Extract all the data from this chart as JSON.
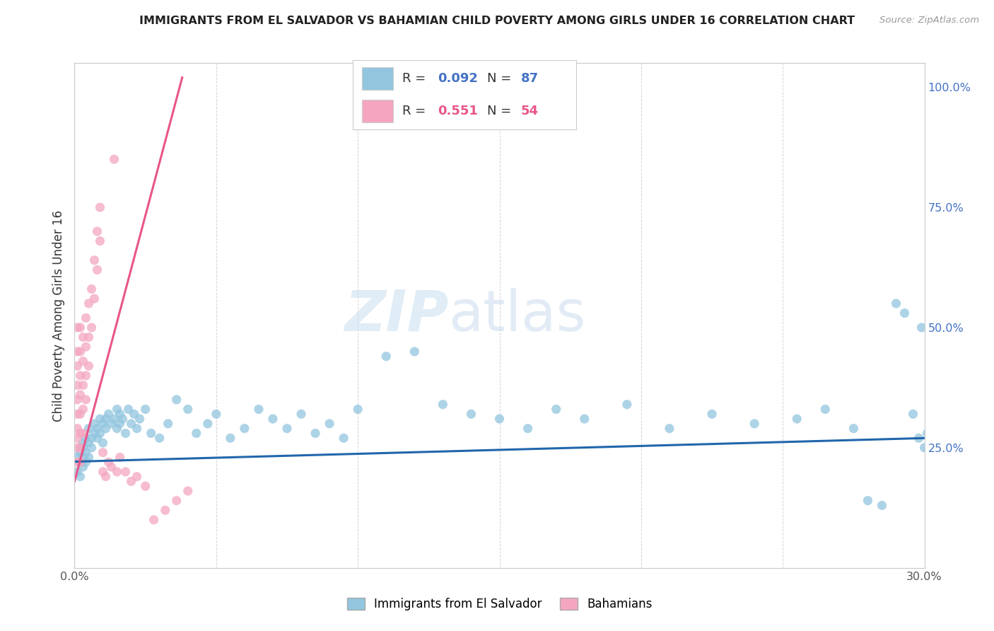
{
  "title": "IMMIGRANTS FROM EL SALVADOR VS BAHAMIAN CHILD POVERTY AMONG GIRLS UNDER 16 CORRELATION CHART",
  "source": "Source: ZipAtlas.com",
  "ylabel": "Child Poverty Among Girls Under 16",
  "xlim": [
    0.0,
    0.3
  ],
  "ylim": [
    0.0,
    1.05
  ],
  "blue_color": "#92c5de",
  "pink_color": "#f4a6c0",
  "blue_line_color": "#2166ac",
  "pink_line_color": "#e8558a",
  "R_blue": 0.092,
  "N_blue": 87,
  "R_pink": 0.551,
  "N_pink": 54,
  "accent_color": "#4472c4",
  "legend_label_blue": "Immigrants from El Salvador",
  "legend_label_pink": "Bahamians",
  "watermark_zip": "ZIP",
  "watermark_atlas": "atlas",
  "blue_scatter_x": [
    0.001,
    0.001,
    0.002,
    0.002,
    0.002,
    0.003,
    0.003,
    0.003,
    0.003,
    0.004,
    0.004,
    0.004,
    0.005,
    0.005,
    0.005,
    0.006,
    0.006,
    0.007,
    0.007,
    0.008,
    0.008,
    0.009,
    0.009,
    0.01,
    0.01,
    0.011,
    0.011,
    0.012,
    0.013,
    0.014,
    0.015,
    0.015,
    0.016,
    0.016,
    0.017,
    0.018,
    0.019,
    0.02,
    0.021,
    0.022,
    0.023,
    0.025,
    0.027,
    0.03,
    0.033,
    0.036,
    0.04,
    0.043,
    0.047,
    0.05,
    0.055,
    0.06,
    0.065,
    0.07,
    0.075,
    0.08,
    0.085,
    0.09,
    0.095,
    0.1,
    0.11,
    0.12,
    0.13,
    0.14,
    0.15,
    0.16,
    0.17,
    0.18,
    0.195,
    0.21,
    0.225,
    0.24,
    0.255,
    0.265,
    0.275,
    0.28,
    0.285,
    0.29,
    0.293,
    0.296,
    0.298,
    0.299,
    0.3,
    0.301,
    0.302,
    0.303,
    0.305
  ],
  "blue_scatter_y": [
    0.2,
    0.23,
    0.19,
    0.24,
    0.22,
    0.21,
    0.25,
    0.23,
    0.26,
    0.22,
    0.24,
    0.27,
    0.23,
    0.26,
    0.29,
    0.25,
    0.27,
    0.28,
    0.3,
    0.27,
    0.29,
    0.28,
    0.31,
    0.3,
    0.26,
    0.31,
    0.29,
    0.32,
    0.3,
    0.31,
    0.33,
    0.29,
    0.32,
    0.3,
    0.31,
    0.28,
    0.33,
    0.3,
    0.32,
    0.29,
    0.31,
    0.33,
    0.28,
    0.27,
    0.3,
    0.35,
    0.33,
    0.28,
    0.3,
    0.32,
    0.27,
    0.29,
    0.33,
    0.31,
    0.29,
    0.32,
    0.28,
    0.3,
    0.27,
    0.33,
    0.44,
    0.45,
    0.34,
    0.32,
    0.31,
    0.29,
    0.33,
    0.31,
    0.34,
    0.29,
    0.32,
    0.3,
    0.31,
    0.33,
    0.29,
    0.14,
    0.13,
    0.55,
    0.53,
    0.32,
    0.27,
    0.5,
    0.25,
    0.28,
    0.3,
    0.19,
    0.21
  ],
  "pink_scatter_x": [
    0.001,
    0.001,
    0.001,
    0.001,
    0.001,
    0.001,
    0.001,
    0.001,
    0.001,
    0.001,
    0.002,
    0.002,
    0.002,
    0.002,
    0.002,
    0.002,
    0.002,
    0.002,
    0.003,
    0.003,
    0.003,
    0.003,
    0.003,
    0.004,
    0.004,
    0.004,
    0.004,
    0.005,
    0.005,
    0.005,
    0.006,
    0.006,
    0.007,
    0.007,
    0.008,
    0.008,
    0.009,
    0.009,
    0.01,
    0.01,
    0.011,
    0.012,
    0.013,
    0.014,
    0.015,
    0.016,
    0.018,
    0.02,
    0.022,
    0.025,
    0.028,
    0.032,
    0.036,
    0.04
  ],
  "pink_scatter_y": [
    0.22,
    0.25,
    0.27,
    0.29,
    0.32,
    0.35,
    0.38,
    0.42,
    0.45,
    0.5,
    0.22,
    0.25,
    0.28,
    0.32,
    0.36,
    0.4,
    0.45,
    0.5,
    0.28,
    0.33,
    0.38,
    0.43,
    0.48,
    0.35,
    0.4,
    0.46,
    0.52,
    0.42,
    0.48,
    0.55,
    0.5,
    0.58,
    0.56,
    0.64,
    0.62,
    0.7,
    0.68,
    0.75,
    0.2,
    0.24,
    0.19,
    0.22,
    0.21,
    0.85,
    0.2,
    0.23,
    0.2,
    0.18,
    0.19,
    0.17,
    0.1,
    0.12,
    0.14,
    0.16
  ],
  "blue_trend_x": [
    0.0,
    0.3
  ],
  "blue_trend_y": [
    0.221,
    0.27
  ],
  "pink_trend_x": [
    0.0,
    0.038
  ],
  "pink_trend_y": [
    0.18,
    1.02
  ]
}
